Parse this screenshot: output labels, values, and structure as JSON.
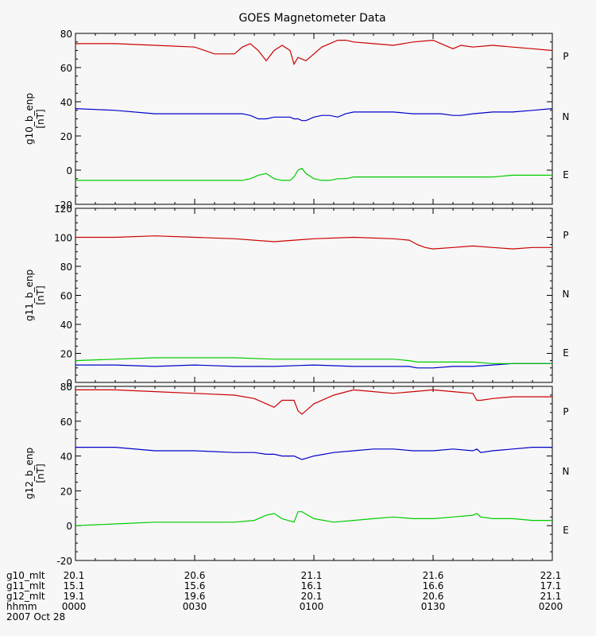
{
  "chart_data": [
    {
      "type": "line",
      "title": "GOES Magnetometer Data",
      "ylabel": "g10_b_enp",
      "yunit": "[nT]",
      "ylim": [
        -20,
        80
      ],
      "yticks": [
        -20,
        0,
        20,
        40,
        60,
        80
      ],
      "xlim": [
        0,
        120
      ],
      "x": [
        0,
        10,
        20,
        30,
        35,
        40,
        42,
        44,
        46,
        48,
        50,
        52,
        54,
        55,
        56,
        57,
        58,
        60,
        62,
        64,
        66,
        68,
        70,
        75,
        80,
        85,
        90,
        92,
        95,
        97,
        100,
        105,
        110,
        115,
        120
      ],
      "series": [
        {
          "name": "P",
          "color": "#cc0000",
          "values": [
            74,
            74,
            73,
            72,
            68,
            68,
            72,
            74,
            70,
            64,
            70,
            73,
            70,
            62,
            66,
            65,
            64,
            68,
            72,
            74,
            76,
            76,
            75,
            74,
            73,
            75,
            76,
            74,
            71,
            73,
            72,
            73,
            72,
            71,
            70
          ]
        },
        {
          "name": "N",
          "color": "#0000cc",
          "values": [
            36,
            35,
            33,
            33,
            33,
            33,
            33,
            32,
            30,
            30,
            31,
            31,
            31,
            30,
            30,
            29,
            29,
            31,
            32,
            32,
            31,
            33,
            34,
            34,
            34,
            33,
            33,
            33,
            32,
            32,
            33,
            34,
            34,
            35,
            36
          ]
        },
        {
          "name": "E",
          "color": "#00cc00",
          "values": [
            -6,
            -6,
            -6,
            -6,
            -6,
            -6,
            -6,
            -5,
            -3,
            -2,
            -5,
            -6,
            -6,
            -4,
            0,
            1,
            -2,
            -5,
            -6,
            -6,
            -5,
            -5,
            -4,
            -4,
            -4,
            -4,
            -4,
            -4,
            -4,
            -4,
            -4,
            -4,
            -3,
            -3,
            -3
          ]
        }
      ]
    },
    {
      "type": "line",
      "ylabel": "g11_b_enp",
      "yunit": "[nT]",
      "ylim": [
        0,
        120
      ],
      "yticks": [
        0,
        20,
        40,
        60,
        80,
        100,
        120
      ],
      "xlim": [
        0,
        120
      ],
      "x": [
        0,
        10,
        20,
        30,
        40,
        50,
        60,
        70,
        80,
        84,
        86,
        88,
        90,
        95,
        100,
        105,
        110,
        115,
        120
      ],
      "series": [
        {
          "name": "P",
          "color": "#cc0000",
          "values": [
            100,
            100,
            101,
            100,
            99,
            97,
            99,
            100,
            99,
            98,
            95,
            93,
            92,
            93,
            94,
            93,
            92,
            93,
            93
          ]
        },
        {
          "name": "N",
          "color": "#0000cc",
          "values": [
            12,
            12,
            11,
            12,
            11,
            11,
            12,
            11,
            11,
            11,
            10,
            10,
            10,
            11,
            11,
            12,
            13,
            13,
            13
          ]
        },
        {
          "name": "E",
          "color": "#00cc00",
          "values": [
            15,
            16,
            17,
            17,
            17,
            16,
            16,
            16,
            16,
            15,
            14,
            14,
            14,
            14,
            14,
            13,
            13,
            13,
            13
          ]
        }
      ],
      "channel_order": [
        "P",
        "N",
        "E"
      ]
    },
    {
      "type": "line",
      "ylabel": "g12_b_enp",
      "yunit": "[nT]",
      "ylim": [
        -20,
        80
      ],
      "yticks": [
        -20,
        0,
        20,
        40,
        60,
        80
      ],
      "xlim": [
        0,
        120
      ],
      "x": [
        0,
        10,
        20,
        30,
        40,
        45,
        48,
        50,
        52,
        55,
        56,
        57,
        60,
        65,
        70,
        75,
        80,
        85,
        90,
        95,
        100,
        101,
        102,
        105,
        110,
        115,
        120
      ],
      "series": [
        {
          "name": "P",
          "color": "#cc0000",
          "values": [
            78,
            78,
            77,
            76,
            75,
            73,
            70,
            68,
            72,
            72,
            66,
            64,
            70,
            75,
            78,
            77,
            76,
            77,
            78,
            77,
            76,
            72,
            72,
            73,
            74,
            74,
            74
          ]
        },
        {
          "name": "N",
          "color": "#0000cc",
          "values": [
            45,
            45,
            43,
            43,
            42,
            42,
            41,
            41,
            40,
            40,
            39,
            38,
            40,
            42,
            43,
            44,
            44,
            43,
            43,
            44,
            43,
            44,
            42,
            43,
            44,
            45,
            45
          ]
        },
        {
          "name": "E",
          "color": "#00cc00",
          "values": [
            0,
            1,
            2,
            2,
            2,
            3,
            6,
            7,
            4,
            2,
            8,
            8,
            4,
            2,
            3,
            4,
            5,
            4,
            4,
            5,
            6,
            7,
            5,
            4,
            4,
            3,
            3
          ]
        }
      ]
    }
  ],
  "footer": {
    "rows": [
      {
        "label": "g10_mlt",
        "values": [
          "20.1",
          "20.6",
          "21.1",
          "21.6",
          "22.1"
        ]
      },
      {
        "label": "g11_mlt",
        "values": [
          "15.1",
          "15.6",
          "16.1",
          "16.6",
          "17.1"
        ]
      },
      {
        "label": "g12_mlt",
        "values": [
          "19.1",
          "19.6",
          "20.1",
          "20.6",
          "21.1"
        ]
      },
      {
        "label": "hhmm",
        "values": [
          "0000",
          "0030",
          "0100",
          "0130",
          "0200"
        ]
      }
    ],
    "date": "2007 Oct 28"
  }
}
